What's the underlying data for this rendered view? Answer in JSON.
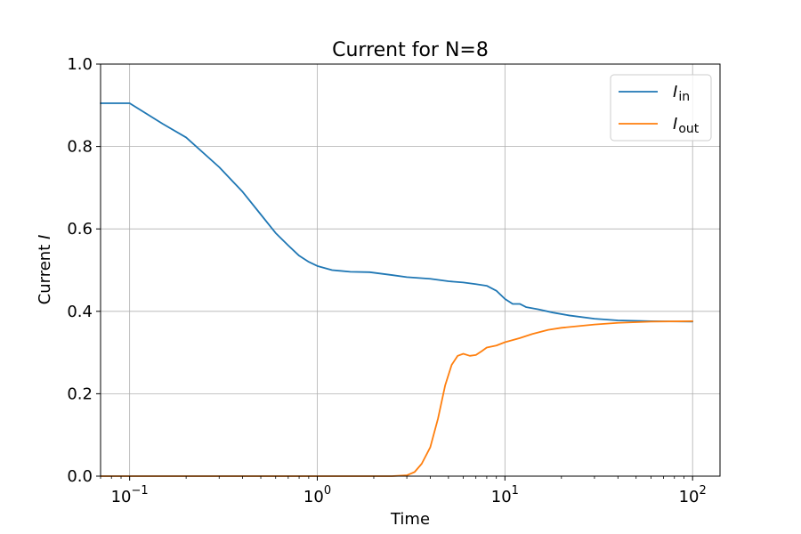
{
  "chart_data": {
    "type": "line",
    "title": "Current for N=8",
    "xlabel": "Time",
    "ylabel_prefix": "Current",
    "ylabel_symbol": "I",
    "xscale": "log",
    "xlim": [
      0.07,
      140
    ],
    "ylim": [
      0,
      1
    ],
    "grid": true,
    "legend_position": "top-right",
    "x_ticks": [
      {
        "base": "10",
        "exp": "−1",
        "value": 0.1
      },
      {
        "base": "10",
        "exp": "0",
        "value": 1
      },
      {
        "base": "10",
        "exp": "1",
        "value": 10
      },
      {
        "base": "10",
        "exp": "2",
        "value": 100
      }
    ],
    "y_ticks": [
      "0.0",
      "0.2",
      "0.4",
      "0.6",
      "0.8",
      "1.0"
    ],
    "series": [
      {
        "name": "I_in",
        "label_main": "I",
        "label_sub": "in",
        "color": "#1f77b4",
        "points": [
          [
            0.07,
            0.905
          ],
          [
            0.1,
            0.905
          ],
          [
            0.15,
            0.855
          ],
          [
            0.2,
            0.822
          ],
          [
            0.3,
            0.75
          ],
          [
            0.4,
            0.69
          ],
          [
            0.5,
            0.635
          ],
          [
            0.6,
            0.59
          ],
          [
            0.7,
            0.56
          ],
          [
            0.8,
            0.535
          ],
          [
            0.9,
            0.52
          ],
          [
            1.0,
            0.51
          ],
          [
            1.2,
            0.5
          ],
          [
            1.5,
            0.496
          ],
          [
            1.9,
            0.495
          ],
          [
            2.5,
            0.488
          ],
          [
            3.0,
            0.483
          ],
          [
            4.0,
            0.479
          ],
          [
            5.0,
            0.473
          ],
          [
            6.0,
            0.47
          ],
          [
            7.0,
            0.466
          ],
          [
            8.0,
            0.462
          ],
          [
            9.0,
            0.45
          ],
          [
            10.0,
            0.43
          ],
          [
            11.0,
            0.418
          ],
          [
            12.0,
            0.418
          ],
          [
            13.0,
            0.41
          ],
          [
            15.0,
            0.405
          ],
          [
            18.0,
            0.397
          ],
          [
            22.0,
            0.39
          ],
          [
            30.0,
            0.382
          ],
          [
            40.0,
            0.378
          ],
          [
            60.0,
            0.376
          ],
          [
            100.0,
            0.375
          ]
        ]
      },
      {
        "name": "I_out",
        "label_main": "I",
        "label_sub": "out",
        "color": "#ff7f0e",
        "points": [
          [
            0.07,
            0.0
          ],
          [
            1.0,
            0.0
          ],
          [
            2.5,
            0.0
          ],
          [
            3.0,
            0.002
          ],
          [
            3.3,
            0.01
          ],
          [
            3.6,
            0.03
          ],
          [
            4.0,
            0.07
          ],
          [
            4.4,
            0.14
          ],
          [
            4.8,
            0.22
          ],
          [
            5.2,
            0.27
          ],
          [
            5.6,
            0.292
          ],
          [
            6.0,
            0.297
          ],
          [
            6.5,
            0.292
          ],
          [
            7.0,
            0.294
          ],
          [
            7.5,
            0.303
          ],
          [
            8.0,
            0.312
          ],
          [
            9.0,
            0.317
          ],
          [
            10.0,
            0.325
          ],
          [
            12.0,
            0.335
          ],
          [
            14.0,
            0.345
          ],
          [
            17.0,
            0.355
          ],
          [
            20.0,
            0.36
          ],
          [
            30.0,
            0.368
          ],
          [
            40.0,
            0.372
          ],
          [
            60.0,
            0.375
          ],
          [
            100.0,
            0.376
          ]
        ]
      }
    ]
  }
}
